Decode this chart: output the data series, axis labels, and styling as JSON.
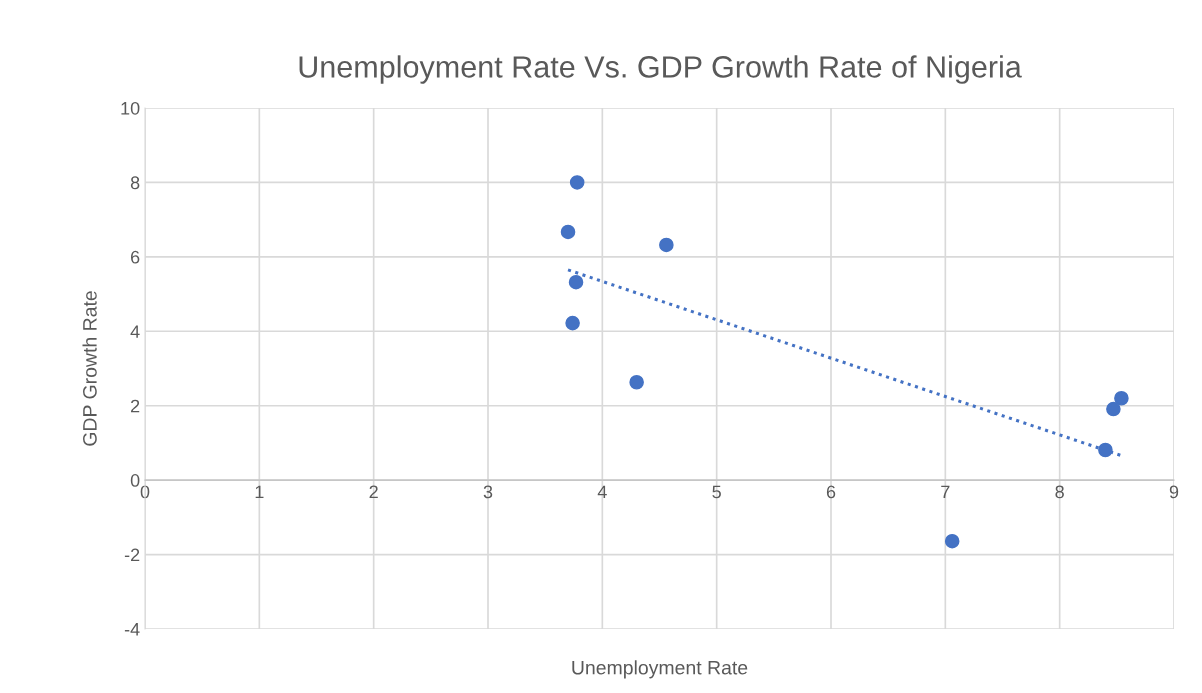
{
  "chart_data": {
    "type": "scatter",
    "title": "Unemployment Rate Vs. GDP Growth Rate of Nigeria",
    "xlabel": "Unemployment Rate",
    "ylabel": "GDP Growth Rate",
    "series": [
      {
        "color": "#4472c4",
        "marker": "circle",
        "x": [
          3.78,
          3.7,
          4.56,
          3.77,
          3.74,
          4.3,
          8.54,
          8.47,
          8.4,
          7.06
        ],
        "values": [
          8.0,
          6.67,
          6.32,
          5.32,
          4.22,
          2.63,
          2.2,
          1.91,
          0.81,
          -1.64
        ]
      },
      {
        "type": "line",
        "color": "#4472c4",
        "line_style": "dotted",
        "x": [
          3.7,
          8.53
        ],
        "values": [
          5.65,
          0.67
        ]
      }
    ],
    "xlim": [
      0,
      9
    ],
    "xticks": [
      0,
      1,
      2,
      3,
      4,
      5,
      6,
      7,
      8,
      9
    ],
    "ylim": [
      -4,
      10
    ],
    "yticks": [
      -4,
      -2,
      0,
      2,
      4,
      6,
      8,
      10
    ],
    "grid": true
  }
}
